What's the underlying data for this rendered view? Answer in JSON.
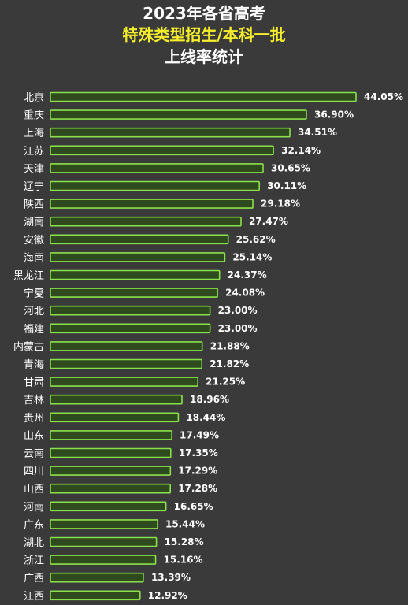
{
  "header": {
    "line1": "2023年各省高考",
    "line2": "特殊类型招生/本科一批",
    "line3": "上线率统计"
  },
  "colors": {
    "background": "#3a3a3a",
    "bar_fill": "#2f4a1e",
    "bar_stroke": "#8ae04a",
    "highlight_text": "#f5ee2a"
  },
  "chart_data": {
    "type": "bar",
    "orientation": "horizontal",
    "title": "2023年各省高考 特殊类型招生/本科一批 上线率统计",
    "xlabel": "",
    "ylabel": "",
    "grid": false,
    "legend": "none",
    "xlim": [
      0,
      44.05
    ],
    "categories": [
      "北京",
      "重庆",
      "上海",
      "江苏",
      "天津",
      "辽宁",
      "陕西",
      "湖南",
      "安徽",
      "海南",
      "黑龙江",
      "宁夏",
      "河北",
      "福建",
      "内蒙古",
      "青海",
      "甘肃",
      "吉林",
      "贵州",
      "山东",
      "云南",
      "四川",
      "山西",
      "河南",
      "广东",
      "湖北",
      "浙江",
      "广西",
      "江西"
    ],
    "values": [
      44.05,
      36.9,
      34.51,
      32.14,
      30.65,
      30.11,
      29.18,
      27.47,
      25.62,
      25.14,
      24.37,
      24.08,
      23.0,
      23.0,
      21.88,
      21.82,
      21.25,
      18.96,
      18.44,
      17.49,
      17.35,
      17.29,
      17.28,
      16.65,
      15.44,
      15.28,
      15.16,
      13.39,
      12.92
    ],
    "value_labels": [
      "44.05%",
      "36.90%",
      "34.51%",
      "32.14%",
      "30.65%",
      "30.11%",
      "29.18%",
      "27.47%",
      "25.62%",
      "25.14%",
      "24.37%",
      "24.08%",
      "23.00%",
      "23.00%",
      "21.88%",
      "21.82%",
      "21.25%",
      "18.96%",
      "18.44%",
      "17.49%",
      "17.35%",
      "17.29%",
      "17.28%",
      "16.65%",
      "15.44%",
      "15.28%",
      "15.16%",
      "13.39%",
      "12.92%"
    ]
  }
}
